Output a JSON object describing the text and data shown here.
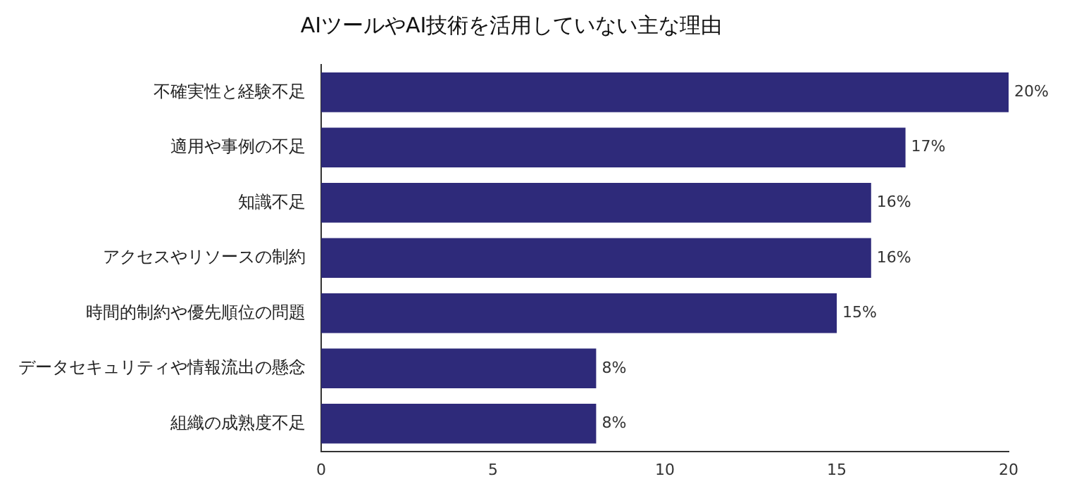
{
  "chart_data": {
    "type": "bar",
    "orientation": "horizontal",
    "title": "AIツールやAI技術を活用していない主な理由",
    "categories": [
      "不確実性と経験不足",
      "適用や事例の不足",
      "知識不足",
      "アクセスやリソースの制約",
      "時間的制約や優先順位の問題",
      "データセキュリティや情報流出の懸念",
      "組織の成熟度不足"
    ],
    "values": [
      20,
      17,
      16,
      16,
      15,
      8,
      8
    ],
    "value_labels": [
      "20%",
      "17%",
      "16%",
      "16%",
      "15%",
      "8%",
      "8%"
    ],
    "color": "#2e2a7a",
    "xlim": [
      0,
      20
    ],
    "xticks": [
      0,
      5,
      10,
      15,
      20
    ],
    "grid": false,
    "legend": false
  }
}
